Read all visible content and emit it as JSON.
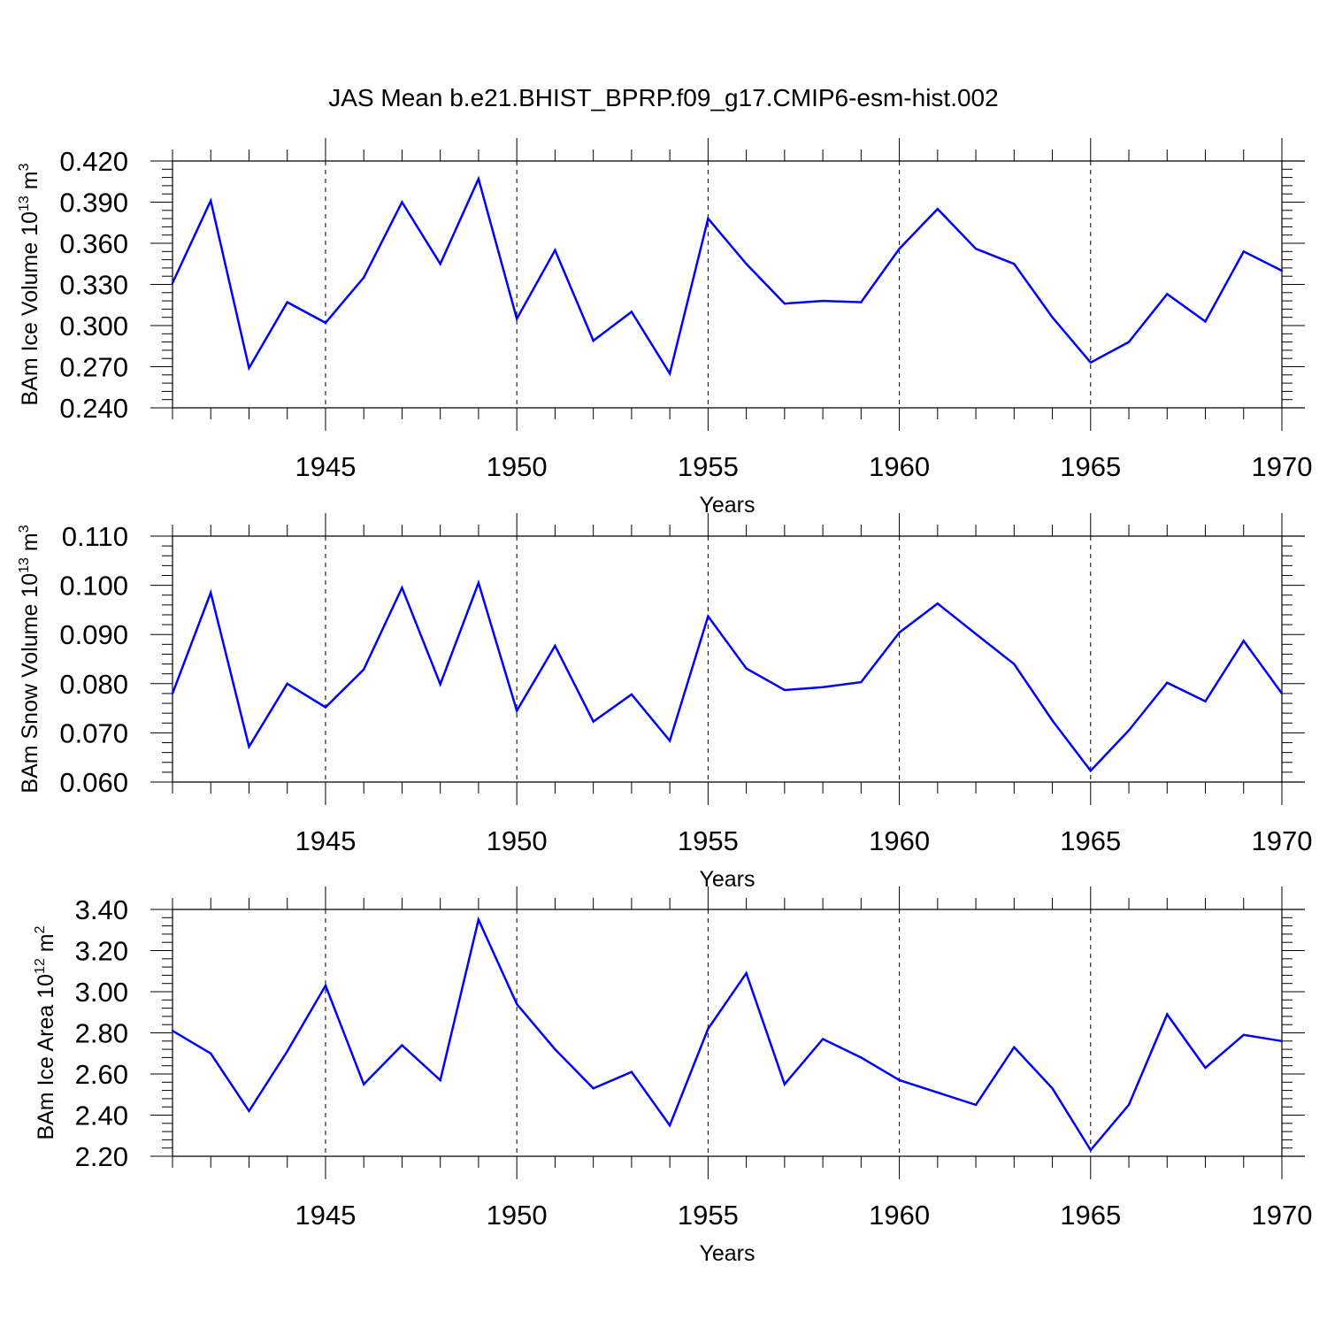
{
  "title": "JAS Mean b.e21.BHIST_BPRP.f09_g17.CMIP6-esm-hist.002",
  "chart_data": [
    {
      "type": "line",
      "ylabel": "BAm Ice Volume",
      "yunit_base": "10",
      "yunit_exp": "13",
      "yunit_m": "m",
      "yunit_m_exp": "3",
      "xlabel": "Years",
      "xlim": [
        1941,
        1970
      ],
      "ylim": [
        0.24,
        0.42
      ],
      "yticks": [
        0.24,
        0.27,
        0.3,
        0.33,
        0.36,
        0.39,
        0.42
      ],
      "ytick_labels": [
        "0.240",
        "0.270",
        "0.300",
        "0.330",
        "0.360",
        "0.390",
        "0.420"
      ],
      "xticks": [
        1945,
        1950,
        1955,
        1960,
        1965,
        1970
      ],
      "xtick_labels": [
        "1945",
        "1950",
        "1955",
        "1960",
        "1965",
        "1970"
      ],
      "color": "#0000ff",
      "x": [
        1941,
        1942,
        1943,
        1944,
        1945,
        1946,
        1947,
        1948,
        1949,
        1950,
        1951,
        1952,
        1953,
        1954,
        1955,
        1956,
        1957,
        1958,
        1959,
        1960,
        1961,
        1962,
        1963,
        1964,
        1965,
        1966,
        1967,
        1968,
        1969,
        1970
      ],
      "values": [
        0.331,
        0.391,
        0.269,
        0.317,
        0.302,
        0.335,
        0.39,
        0.345,
        0.407,
        0.305,
        0.355,
        0.289,
        0.31,
        0.265,
        0.378,
        0.345,
        0.316,
        0.318,
        0.317,
        0.356,
        0.385,
        0.356,
        0.345,
        0.306,
        0.273,
        0.288,
        0.323,
        0.303,
        0.354,
        0.34
      ]
    },
    {
      "type": "line",
      "ylabel": "BAm Snow Volume",
      "yunit_base": "10",
      "yunit_exp": "13",
      "yunit_m": "m",
      "yunit_m_exp": "3",
      "xlabel": "Years",
      "xlim": [
        1941,
        1970
      ],
      "ylim": [
        0.06,
        0.11
      ],
      "yticks": [
        0.06,
        0.07,
        0.08,
        0.09,
        0.1,
        0.11
      ],
      "ytick_labels": [
        "0.060",
        "0.070",
        "0.080",
        "0.090",
        "0.100",
        "0.110"
      ],
      "xticks": [
        1945,
        1950,
        1955,
        1960,
        1965,
        1970
      ],
      "xtick_labels": [
        "1945",
        "1950",
        "1955",
        "1960",
        "1965",
        "1970"
      ],
      "color": "#0000ff",
      "x": [
        1941,
        1942,
        1943,
        1944,
        1945,
        1946,
        1947,
        1948,
        1949,
        1950,
        1951,
        1952,
        1953,
        1954,
        1955,
        1956,
        1957,
        1958,
        1959,
        1960,
        1961,
        1962,
        1963,
        1964,
        1965,
        1966,
        1967,
        1968,
        1969,
        1970
      ],
      "values": [
        0.078,
        0.0985,
        0.0672,
        0.08,
        0.0752,
        0.0829,
        0.0995,
        0.0799,
        0.1005,
        0.0745,
        0.0877,
        0.0723,
        0.0778,
        0.0684,
        0.0937,
        0.0831,
        0.0787,
        0.0793,
        0.0803,
        0.0904,
        0.0963,
        0.0901,
        0.084,
        0.0725,
        0.0623,
        0.0705,
        0.0802,
        0.0764,
        0.0887,
        0.078
      ]
    },
    {
      "type": "line",
      "ylabel": "BAm Ice Area",
      "yunit_base": "10",
      "yunit_exp": "12",
      "yunit_m": "m",
      "yunit_m_exp": "2",
      "xlabel": "Years",
      "xlim": [
        1941,
        1970
      ],
      "ylim": [
        2.2,
        3.4
      ],
      "yticks": [
        2.2,
        2.4,
        2.6,
        2.8,
        3.0,
        3.2,
        3.4
      ],
      "ytick_labels": [
        "2.20",
        "2.40",
        "2.60",
        "2.80",
        "3.00",
        "3.20",
        "3.40"
      ],
      "xticks": [
        1945,
        1950,
        1955,
        1960,
        1965,
        1970
      ],
      "xtick_labels": [
        "1945",
        "1950",
        "1955",
        "1960",
        "1965",
        "1970"
      ],
      "color": "#0000ff",
      "x": [
        1941,
        1942,
        1943,
        1944,
        1945,
        1946,
        1947,
        1948,
        1949,
        1950,
        1951,
        1952,
        1953,
        1954,
        1955,
        1956,
        1957,
        1958,
        1959,
        1960,
        1961,
        1962,
        1963,
        1964,
        1965,
        1966,
        1967,
        1968,
        1969,
        1970
      ],
      "values": [
        2.81,
        2.7,
        2.42,
        2.71,
        3.03,
        2.55,
        2.74,
        2.57,
        3.35,
        2.94,
        2.72,
        2.53,
        2.61,
        2.35,
        2.82,
        3.09,
        2.55,
        2.77,
        2.68,
        2.57,
        2.51,
        2.45,
        2.73,
        2.53,
        2.23,
        2.45,
        2.89,
        2.63,
        2.79,
        2.76
      ]
    }
  ]
}
